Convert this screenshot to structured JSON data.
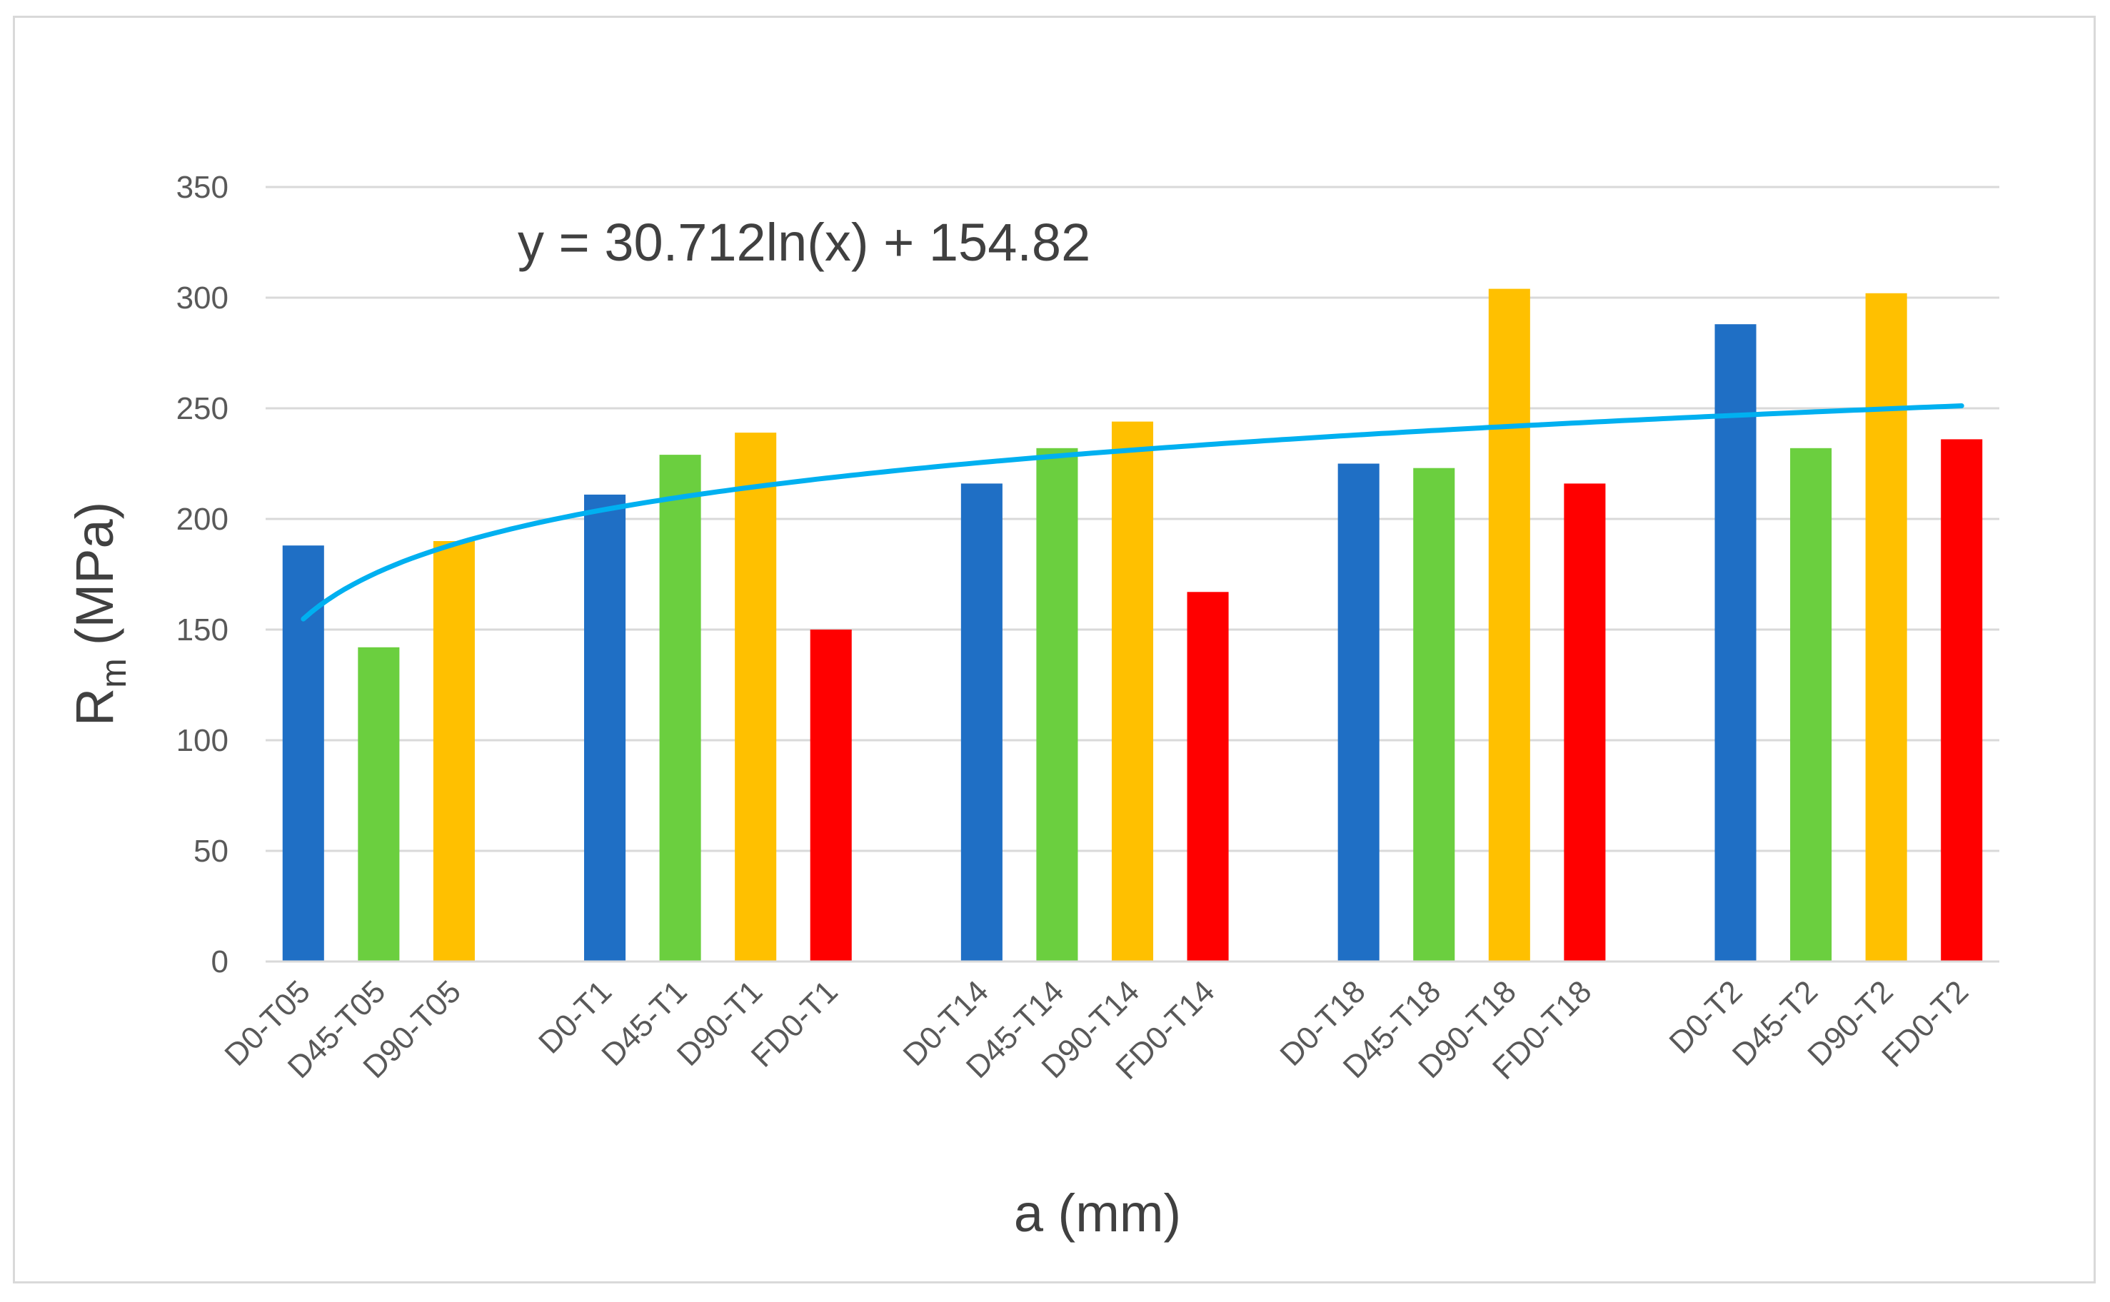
{
  "chart_data": {
    "type": "bar",
    "categories": [
      "D0-T05",
      "D45-T05",
      "D90-T05",
      "",
      "D0-T1",
      "D45-T1",
      "D90-T1",
      "FD0-T1",
      "",
      "D0-T14",
      "D45-T14",
      "D90-T14",
      "FD0-T14",
      "",
      "D0-T18",
      "D45-T18",
      "D90-T18",
      "FD0-T18",
      "",
      "D0-T2",
      "D45-T2",
      "D90-T2",
      "FD0-T2"
    ],
    "values": [
      188,
      142,
      190,
      null,
      211,
      229,
      239,
      150,
      null,
      216,
      232,
      244,
      167,
      null,
      225,
      223,
      304,
      216,
      null,
      288,
      232,
      302,
      236
    ],
    "bar_colors": [
      "#1f6fc5",
      "#6bcf3f",
      "#ffc000",
      null,
      "#1f6fc5",
      "#6bcf3f",
      "#ffc000",
      "#ff0000",
      null,
      "#1f6fc5",
      "#6bcf3f",
      "#ffc000",
      "#ff0000",
      null,
      "#1f6fc5",
      "#6bcf3f",
      "#ffc000",
      "#ff0000",
      null,
      "#1f6fc5",
      "#6bcf3f",
      "#ffc000",
      "#ff0000"
    ],
    "trendline": {
      "type": "logarithmic",
      "equation": "y = 30.712ln(x) + 154.82",
      "a": 30.712,
      "b": 154.82,
      "color": "#00b0f0"
    },
    "xlabel": "a (mm)",
    "ylabel_main": "R",
    "ylabel_sub": "m",
    "ylabel_unit": "(MPa)",
    "ylim": [
      0,
      350
    ],
    "yticks": [
      0,
      50,
      100,
      150,
      200,
      250,
      300,
      350
    ],
    "grid": true,
    "gridline_color": "#d9d9d9"
  }
}
